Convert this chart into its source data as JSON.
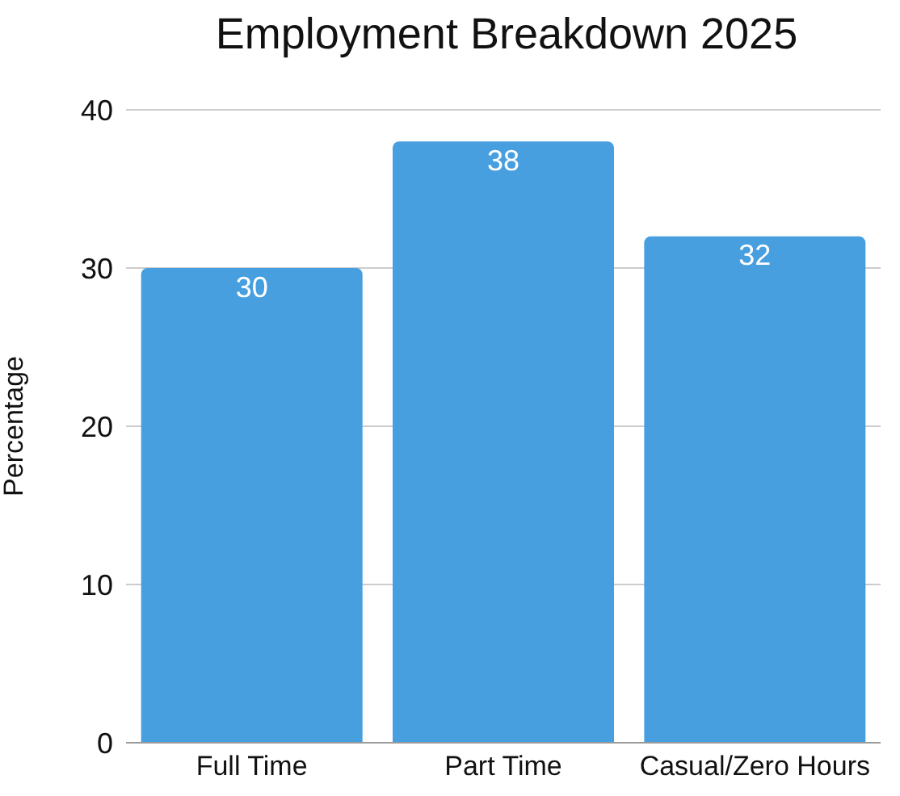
{
  "chart_data": {
    "type": "bar",
    "title": "Employment Breakdown 2025",
    "ylabel": "Percentage",
    "categories": [
      "Full Time",
      "Part Time",
      "Casual/Zero Hours"
    ],
    "values": [
      30,
      38,
      32
    ],
    "color": "#479fdf",
    "ylim": [
      0,
      40
    ],
    "yticks": [
      0,
      10,
      20,
      30,
      40
    ],
    "grid": "y",
    "data_labels": true
  }
}
